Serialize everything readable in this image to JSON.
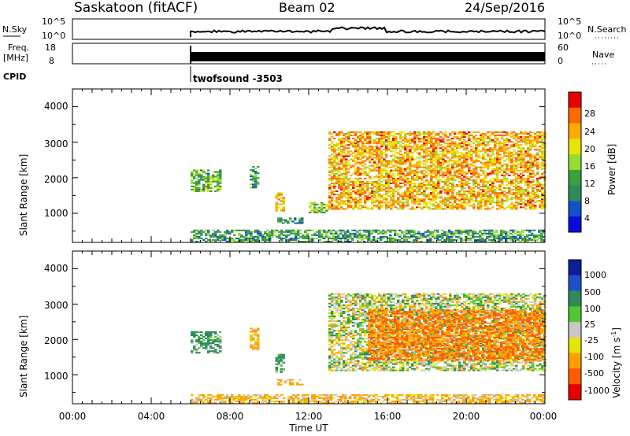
{
  "header": {
    "station": "Saskatoon (fitACF)",
    "beam": "Beam 02",
    "date": "24/Sep/2016"
  },
  "panels": {
    "nsky": {
      "label": "N.Sky",
      "ticks": [
        "10^5",
        "10^0"
      ]
    },
    "nsearch": {
      "label": "N.Search",
      "ticks": [
        "10^5",
        "10^0"
      ]
    },
    "freq": {
      "label_line1": "Freq.",
      "label_line2": "[MHz]",
      "ticks": [
        "18",
        "8"
      ]
    },
    "nave": {
      "label": "Nave",
      "ticks": [
        "60",
        "0"
      ]
    },
    "cpid": {
      "label": "CPID",
      "value": "twofsound  -3503"
    }
  },
  "power_colorbar": {
    "title": "Power [dB]",
    "ticks": [
      "28",
      "24",
      "20",
      "16",
      "12",
      "8",
      "4"
    ],
    "colors": [
      "#e60000",
      "#ff6a00",
      "#ffaa00",
      "#e6e600",
      "#96dc32",
      "#3ca03c",
      "#2f8a5a",
      "#1450c8",
      "#0a0adc"
    ]
  },
  "velocity_colorbar": {
    "title": "Velocity [m s",
    "title_sup": "-1",
    "title_end": "]",
    "ticks": [
      "1000",
      "500",
      "100",
      "25",
      "-25",
      "-100",
      "-500",
      "-1000"
    ],
    "colors": [
      "#0a1e96",
      "#1e50c8",
      "#2f8a5a",
      "#50c832",
      "#c8c8c8",
      "#e6e600",
      "#ffa000",
      "#ff5a00",
      "#e60000"
    ]
  },
  "chart_data": [
    {
      "type": "heatmap",
      "title": "",
      "xlabel": "Time UT",
      "ylabel": "Slant Range [km]",
      "x_ticks": [
        "00:00",
        "04:00",
        "08:00",
        "12:00",
        "16:00",
        "20:00",
        "00:00"
      ],
      "y_ticks": [
        "4000",
        "3000",
        "2000",
        "1000"
      ],
      "xlim_hours": [
        0,
        24
      ],
      "ylim_km": [
        180,
        4500
      ],
      "colorbar": "Power [dB]",
      "colorbar_range_db": [
        0,
        30
      ],
      "echo_regions": [
        {
          "t_start": 6.0,
          "t_end": 7.5,
          "r_min": 1600,
          "r_max": 2200,
          "level": 12
        },
        {
          "t_start": 9.0,
          "t_end": 9.4,
          "r_min": 1700,
          "r_max": 2300,
          "level": 10
        },
        {
          "t_start": 10.3,
          "t_end": 10.7,
          "r_min": 1050,
          "r_max": 1550,
          "level": 20
        },
        {
          "t_start": 10.4,
          "t_end": 11.6,
          "r_min": 700,
          "r_max": 850,
          "level": 8
        },
        {
          "t_start": 12.0,
          "t_end": 13.0,
          "r_min": 1000,
          "r_max": 1300,
          "level": 14
        },
        {
          "t_start": 13.0,
          "t_end": 24.0,
          "r_min": 1100,
          "r_max": 3300,
          "level": 22
        },
        {
          "t_start": 6.0,
          "t_end": 24.0,
          "r_min": 180,
          "r_max": 500,
          "level": 10
        }
      ]
    },
    {
      "type": "heatmap",
      "title": "",
      "xlabel": "Time UT",
      "ylabel": "Slant Range [km]",
      "x_ticks": [
        "00:00",
        "04:00",
        "08:00",
        "12:00",
        "16:00",
        "20:00",
        "00:00"
      ],
      "y_ticks": [
        "4000",
        "3000",
        "2000",
        "1000"
      ],
      "xlim_hours": [
        0,
        24
      ],
      "ylim_km": [
        180,
        4500
      ],
      "colorbar": "Velocity [m s-1]",
      "colorbar_range_ms": [
        -1000,
        1000
      ],
      "echo_regions": [
        {
          "t_start": 6.0,
          "t_end": 7.5,
          "r_min": 1600,
          "r_max": 2200,
          "velocity": 100
        },
        {
          "t_start": 9.0,
          "t_end": 9.4,
          "r_min": 1700,
          "r_max": 2300,
          "velocity": -100
        },
        {
          "t_start": 10.3,
          "t_end": 10.7,
          "r_min": 1050,
          "r_max": 1550,
          "velocity": 100
        },
        {
          "t_start": 10.4,
          "t_end": 11.6,
          "r_min": 700,
          "r_max": 850,
          "velocity": -100
        },
        {
          "t_start": 13.0,
          "t_end": 24.0,
          "r_min": 1100,
          "r_max": 3300,
          "velocity": 0
        },
        {
          "t_start": 15.0,
          "t_end": 24.0,
          "r_min": 1400,
          "r_max": 2800,
          "velocity": -300
        },
        {
          "t_start": 6.0,
          "t_end": 24.0,
          "r_min": 180,
          "r_max": 450,
          "velocity": -80
        }
      ]
    }
  ]
}
